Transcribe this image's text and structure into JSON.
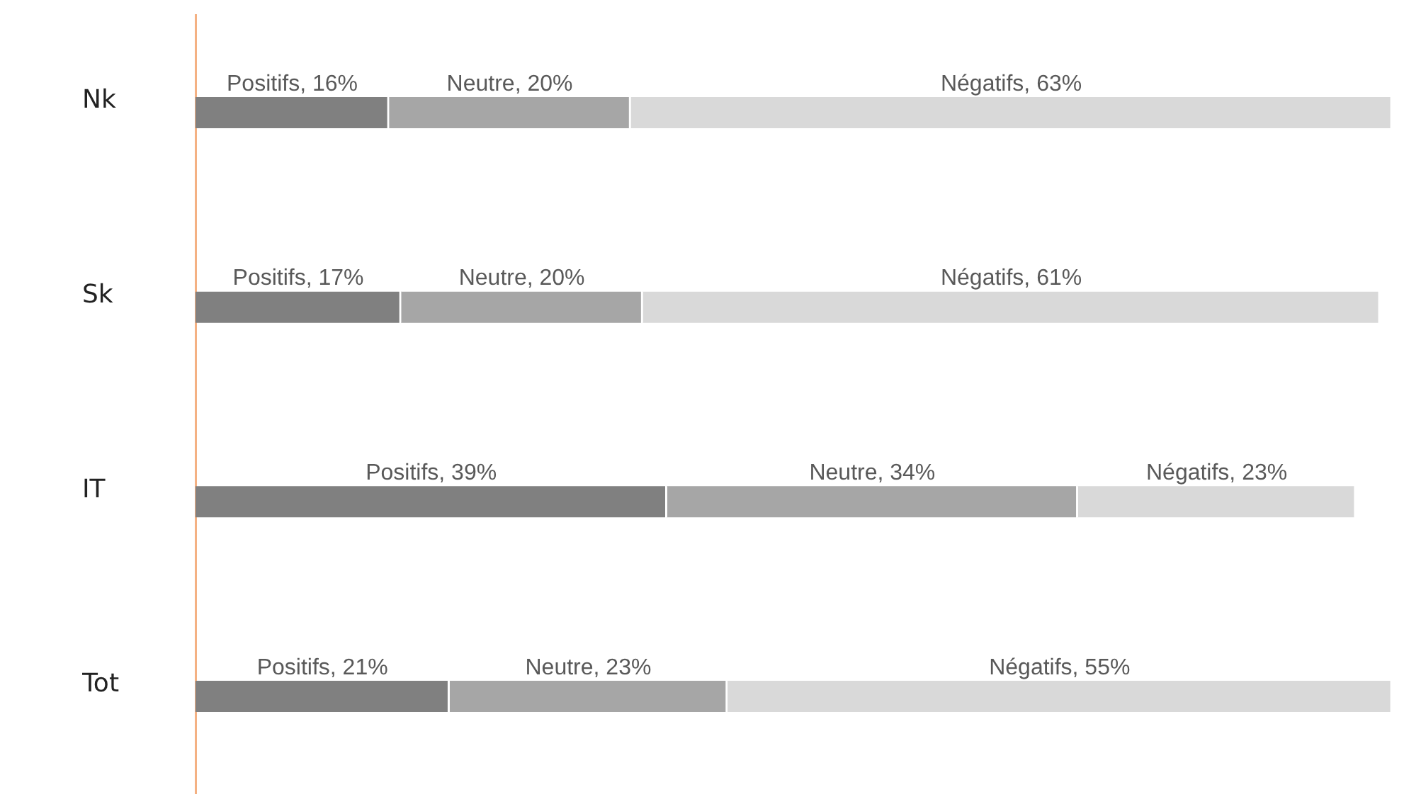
{
  "chart_data": {
    "type": "bar",
    "orientation": "horizontal",
    "stacked": true,
    "categories": [
      "Nk",
      "Sk",
      "IT",
      "Tot"
    ],
    "tick_labels": "y",
    "grid": false,
    "legend": false,
    "series": [
      {
        "color": "#808080",
        "values": [
          16,
          17,
          39,
          21
        ],
        "value_labels": [
          "Positifs, 16%",
          "Positifs, 17%",
          "Positifs, 39%",
          "Positifs, 21%"
        ]
      },
      {
        "color": "#a6a6a6",
        "values": [
          20,
          20,
          34,
          23
        ],
        "value_labels": [
          "Neutre, 20%",
          "Neutre, 20%",
          "Neutre, 34%",
          "Neutre, 23%"
        ]
      },
      {
        "color": "#d9d9d9",
        "values": [
          63,
          61,
          23,
          55
        ],
        "value_labels": [
          "Négatifs, 63%",
          "Négatifs, 61%",
          "Négatifs, 23%",
          "Négatifs, 55%"
        ]
      }
    ]
  }
}
